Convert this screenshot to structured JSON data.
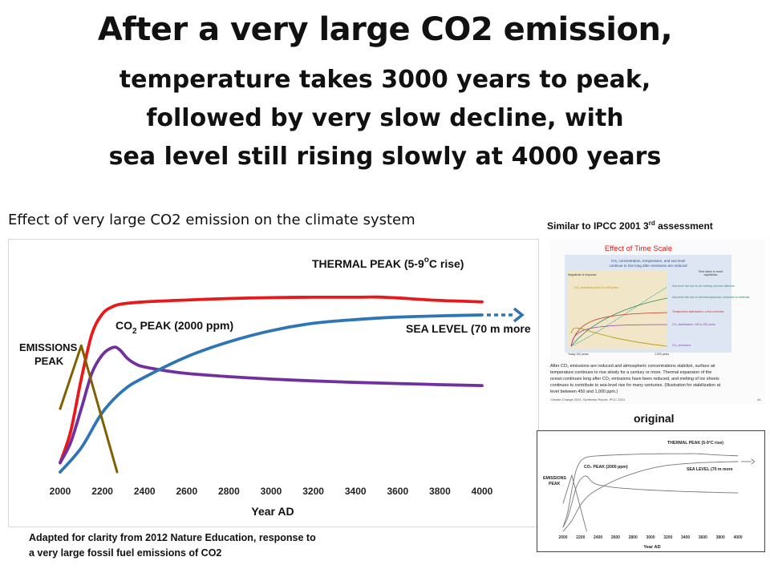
{
  "title": {
    "line1": "After a very large CO2 emission,",
    "line2": "temperature takes 3000 years to peak,",
    "line3": "followed by very slow decline, with",
    "line4": "sea level still rising slowly at 4000 years"
  },
  "chart_caption": "Effect of very large CO2 emission on the climate system",
  "footer_note": {
    "line1": "Adapted for clarity from 2012 Nature Education, response to",
    "line2": "a very large fossil fuel emissions of CO2"
  },
  "ipcc": {
    "caption_pre": "Similar to IPCC 2001 3",
    "caption_sup": "rd",
    "caption_post": " assessment",
    "panel_title": "Effect of Time Scale",
    "inner_title_1": "CO₂ concentration, temperature, and sea level",
    "inner_title_2": "continue to rise long after emissions are reduced",
    "magnitude_label": "Magnitude of response",
    "time_label_1": "Time taken to reach",
    "time_label_2": "equilibrium",
    "labels": [
      "Sea-level rise due to ice melting: several millennia",
      "Sea-level rise due to thermal expansion: centuries to millennia",
      "Temperature stabilization: a few centuries",
      "CO₂ stabilization: 100 to 300 years",
      "CO₂ emissions"
    ],
    "peak_label": "CO₂ emissions peak 0 to 100 years",
    "axis_left": "Today 100 years",
    "axis_right": "1,000 years",
    "body_1": "After CO₂ emissions are reduced and atmospheric concentrations stabilize, surface air",
    "body_2": "temperature continues to rise slowly for a century or more.  Thermal expansion of the",
    "body_3": "ocean continues long after CO₂ emissions have been reduced, and melting of ice sheets",
    "body_4": "continues to contribute to sea-level rise for many centuries. (Illustration for stabilization at",
    "body_5": "level between 450 and 1,000 ppm.)",
    "source": "Climate Change 2001: Synthesis Report, IPCC 2001",
    "page_no": "44"
  },
  "original_label": "original",
  "original_chart": {
    "thermal_peak": "THERMAL PEAK (5-9°C rise)",
    "co2_peak": "CO₂ PEAK (2000 ppm)",
    "sea_level": "SEA LEVEL (70 m more",
    "emissions_1": "EMISSIONS",
    "emissions_2": "PEAK",
    "xlabel": "Year AD"
  },
  "colors": {
    "temperature": "#e8191a",
    "co2": "#7030a0",
    "sea_level": "#2e75b6",
    "emissions": "#7f6000"
  },
  "chart_data": {
    "type": "line",
    "xlabel": "Year AD",
    "xlim": [
      2000,
      4000
    ],
    "x_ticks": [
      2000,
      2200,
      2400,
      2600,
      2800,
      3000,
      3200,
      3400,
      3600,
      3800,
      4000
    ],
    "ylim": [
      0,
      100
    ],
    "annotations": {
      "thermal_peak": "THERMAL PEAK (5-9",
      "thermal_unit": "C rise)",
      "co2_peak_pre": "CO",
      "co2_peak_sub": "2",
      "co2_peak_post": " PEAK (2000 ppm)",
      "sea_level": "SEA LEVEL (70 m more",
      "emissions_1": "EMISSIONS",
      "emissions_2": "PEAK"
    },
    "series": [
      {
        "key": "temperature",
        "x": [
          2000,
          2050,
          2100,
          2150,
          2200,
          2250,
          2300,
          2400,
          2600,
          2800,
          3000,
          3200,
          3400,
          3500,
          3600,
          3800,
          4000
        ],
        "y": [
          5,
          22,
          50,
          74,
          85,
          89,
          90.5,
          91.5,
          92.5,
          93.3,
          93.8,
          94,
          94,
          94.1,
          93.6,
          92.3,
          91.5
        ]
      },
      {
        "key": "co2",
        "x": [
          2000,
          2050,
          2100,
          2150,
          2200,
          2250,
          2280,
          2320,
          2360,
          2400,
          2500,
          2600,
          2800,
          3000,
          3200,
          3400,
          3600,
          3800,
          4000
        ],
        "y": [
          5,
          16,
          34,
          53,
          63,
          67,
          66,
          61,
          58,
          56.5,
          54.5,
          53,
          51.3,
          50,
          49,
          48.2,
          47.6,
          47,
          46.5
        ]
      },
      {
        "key": "sea_level",
        "x": [
          2000,
          2100,
          2200,
          2300,
          2400,
          2600,
          2800,
          3000,
          3200,
          3400,
          3600,
          3800,
          4000
        ],
        "y": [
          0,
          13,
          32,
          44,
          51,
          62,
          70,
          76,
          80,
          82,
          83.3,
          84,
          84.5
        ]
      },
      {
        "key": "emissions",
        "x": [
          2000,
          2100,
          2270
        ],
        "y": [
          34,
          68,
          0
        ]
      }
    ],
    "sea_extension": {
      "x": [
        4000,
        4190
      ],
      "y": [
        84.5,
        84.5
      ]
    }
  }
}
